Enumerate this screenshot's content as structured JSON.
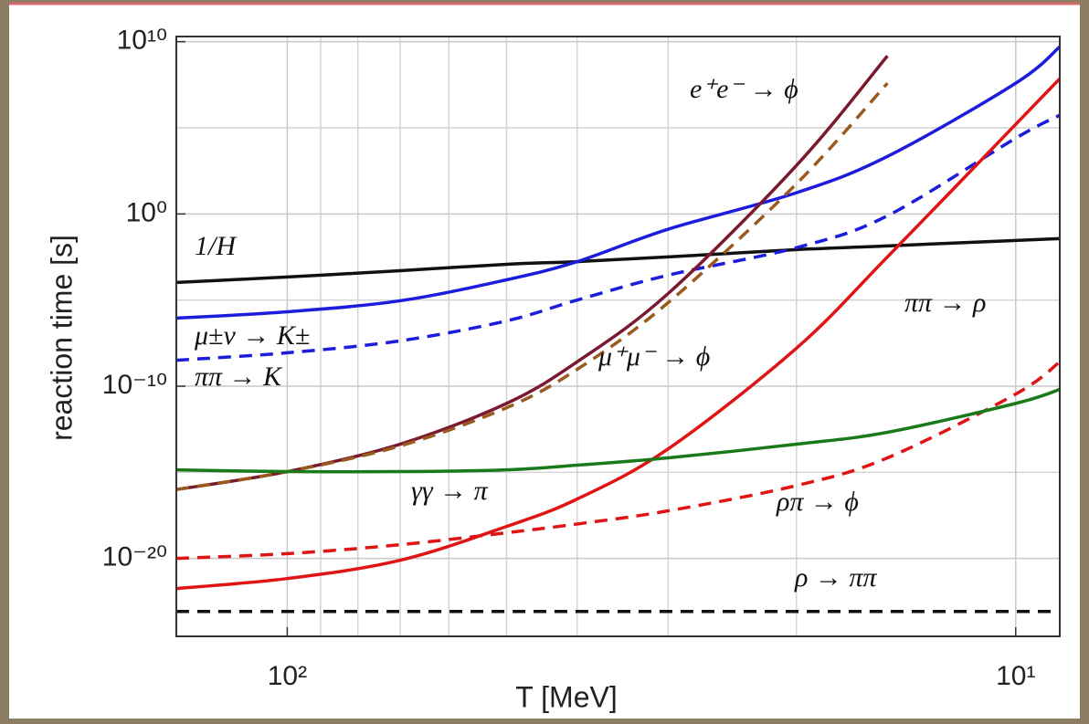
{
  "chart_data": {
    "type": "line",
    "x_label": "T [MeV]",
    "y_label": "reaction time [s]",
    "x_log": true,
    "y_log": true,
    "grid": true,
    "xlim": [
      142,
      8.7
    ],
    "ylim": [
      3e-25,
      20000000000.0
    ],
    "xticks": [
      {
        "value": 100,
        "label": "10²"
      },
      {
        "value": 10,
        "label": "10¹"
      }
    ],
    "xminor": [
      90,
      80,
      70,
      60,
      50,
      40,
      30,
      20
    ],
    "yticks": [
      {
        "value": 10000000000.0,
        "label": "10¹⁰"
      },
      {
        "value": 1,
        "label": "10⁰"
      },
      {
        "value": 1e-10,
        "label": "10⁻¹⁰"
      },
      {
        "value": 1e-20,
        "label": "10⁻²⁰"
      }
    ],
    "yminor": [
      100000.0,
      1e-05,
      1e-15
    ],
    "x": [
      142,
      100,
      70,
      50,
      40,
      30,
      20,
      15,
      10,
      8.7
    ],
    "series": [
      {
        "name": "1/H",
        "color": "#111111",
        "dash": false,
        "values": [
          0.000105,
          0.00022,
          0.00051,
          0.0012,
          0.0017,
          0.0032,
          0.0085,
          0.014,
          0.029,
          0.037
        ]
      },
      {
        "name": "μ±ν → K±",
        "color": "#1c1cdc",
        "dash": false,
        "values": [
          8.9e-07,
          2.1e-06,
          9.1e-06,
          0.00015,
          0.0017,
          0.13,
          17,
          2200,
          39000000.0,
          5100000000.0
        ]
      },
      {
        "name": "ππ → K",
        "color": "#1c1cdc",
        "dash": true,
        "values": [
          3.2e-09,
          8.7e-09,
          4.3e-08,
          6.2e-07,
          1e-05,
          0.00028,
          0.011,
          0.78,
          25000.0,
          540000.0
        ]
      },
      {
        "name": "e⁺e⁻ → ϕ",
        "color": "#7a1a2e",
        "dash": false,
        "values": [
          1e-16,
          1.1e-15,
          4.3e-14,
          1e-11,
          2.6e-09,
          2.4e-05,
          650,
          1500000000.0,
          null,
          null
        ]
      },
      {
        "name": "μ⁺μ⁻ → ϕ",
        "color": "#9a5a1e",
        "dash": true,
        "values": [
          1e-16,
          1.1e-15,
          3.4e-14,
          5.6e-12,
          9.5e-10,
          7.1e-06,
          56,
          39000000.0,
          null,
          null
        ]
      },
      {
        "name": "ππ → ρ",
        "color": "#e01414",
        "dash": false,
        "values": [
          1.8e-22,
          6.8e-22,
          7.8e-21,
          7.2e-19,
          2.8e-17,
          2.3e-14,
          1.6e-08,
          0.0032,
          160000.0,
          71000000.0
        ]
      },
      {
        "name": "ρπ → ϕ",
        "color": "#e01414",
        "dash": true,
        "values": [
          1e-20,
          1.9e-20,
          6.3e-20,
          3.1e-19,
          1e-18,
          5.8e-18,
          1.7e-16,
          6.9e-15,
          3.5e-11,
          2.6e-09
        ]
      },
      {
        "name": "γγ → π",
        "color": "#1a7a1a",
        "dash": false,
        "values": [
          1.4e-15,
          1.1e-15,
          1.1e-15,
          1.4e-15,
          2.6e-15,
          6.9e-15,
          4.3e-14,
          2.1e-13,
          1e-11,
          6.5e-11
        ]
      },
      {
        "name": "ρ → ππ",
        "color": "#111111",
        "dash": true,
        "values": [
          8.3e-24,
          8.3e-24,
          8.3e-24,
          8.3e-24,
          8.3e-24,
          8.3e-24,
          8.3e-24,
          8.3e-24,
          8.3e-24,
          8.3e-24
        ]
      }
    ]
  }
}
